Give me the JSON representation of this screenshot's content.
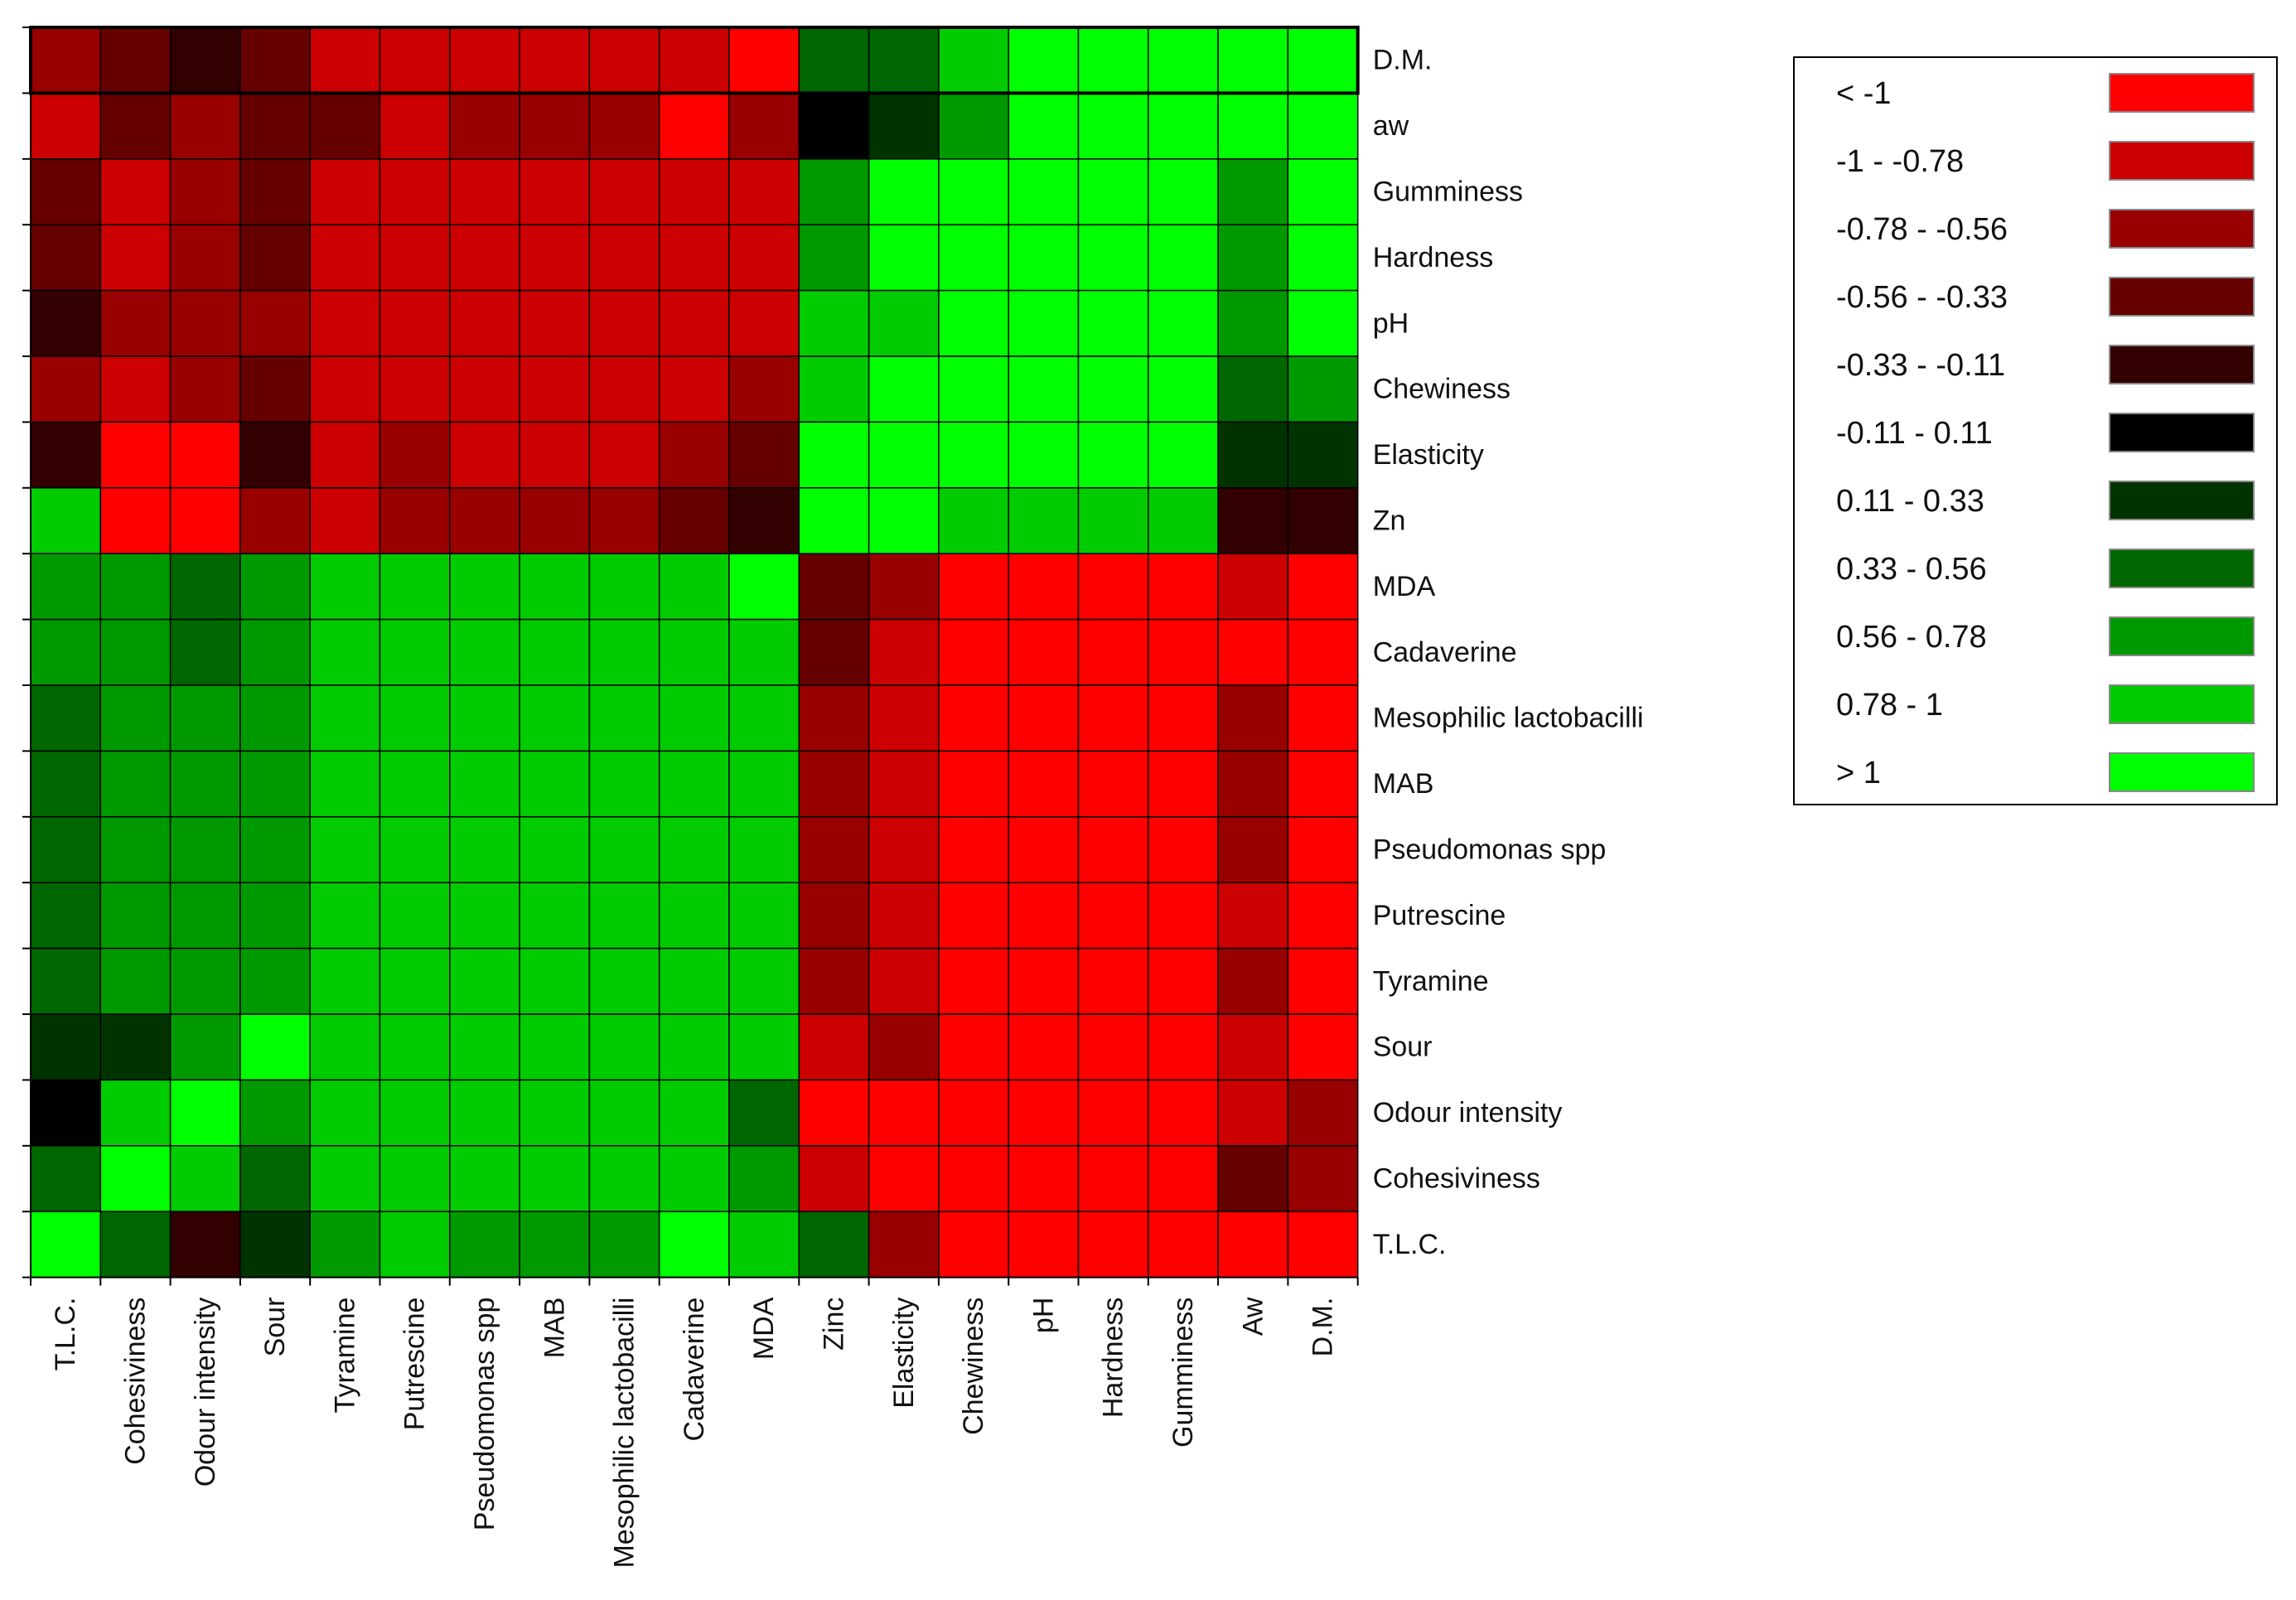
{
  "chart_data": {
    "type": "heatmap",
    "title": "",
    "rows": [
      "D.M.",
      "aw",
      "Gumminess",
      "Hardness",
      "pH",
      "Chewiness",
      "Elasticity",
      "Zn",
      "MDA",
      "Cadaverine",
      "Mesophilic lactobacilli",
      "MAB",
      "Pseudomonas spp",
      "Putrescine",
      "Tyramine",
      "Sour",
      "Odour intensity",
      "Cohesiviness",
      "T.L.C."
    ],
    "columns": [
      "T.L.C.",
      "Cohesiviness",
      "Odour intensity",
      "Sour",
      "Tyramine",
      "Putrescine",
      "Pseudomonas spp",
      "MAB",
      "Mesophilic lactobacilli",
      "Cadaverine",
      "MDA",
      "Zinc",
      "Elasticity",
      "Chewiness",
      "pH",
      "Hardness",
      "Gumminess",
      "Aw",
      "D.M."
    ],
    "bins": [
      {
        "label": "< -1",
        "color": "#ff0000"
      },
      {
        "label": "-1 - -0.78",
        "color": "#cc0000"
      },
      {
        "label": "-0.78 - -0.56",
        "color": "#990000"
      },
      {
        "label": "-0.56 - -0.33",
        "color": "#660000"
      },
      {
        "label": "-0.33 - -0.11",
        "color": "#330000"
      },
      {
        "label": "-0.11 - 0.11",
        "color": "#000000"
      },
      {
        "label": "0.11 - 0.33",
        "color": "#003300"
      },
      {
        "label": "0.33 - 0.56",
        "color": "#006600"
      },
      {
        "label": "0.56 - 0.78",
        "color": "#009900"
      },
      {
        "label": "0.78 - 1",
        "color": "#00cc00"
      },
      {
        "label": "> 1",
        "color": "#00ff00"
      }
    ],
    "cells": [
      [
        2,
        3,
        4,
        3,
        1,
        1,
        1,
        1,
        1,
        1,
        0,
        7,
        7,
        9,
        10,
        10,
        10,
        10,
        10
      ],
      [
        1,
        3,
        2,
        3,
        3,
        1,
        2,
        2,
        2,
        0,
        2,
        5,
        6,
        8,
        10,
        10,
        10,
        10,
        10
      ],
      [
        3,
        1,
        2,
        3,
        1,
        1,
        1,
        1,
        1,
        1,
        1,
        8,
        10,
        10,
        10,
        10,
        10,
        8,
        10
      ],
      [
        3,
        1,
        2,
        3,
        1,
        1,
        1,
        1,
        1,
        1,
        1,
        8,
        10,
        10,
        10,
        10,
        10,
        8,
        10
      ],
      [
        4,
        2,
        2,
        2,
        1,
        1,
        1,
        1,
        1,
        1,
        1,
        9,
        9,
        10,
        10,
        10,
        10,
        8,
        10
      ],
      [
        2,
        1,
        2,
        3,
        1,
        1,
        1,
        1,
        1,
        1,
        2,
        9,
        10,
        10,
        10,
        10,
        10,
        7,
        8
      ],
      [
        4,
        0,
        0,
        4,
        1,
        2,
        1,
        1,
        1,
        2,
        3,
        10,
        10,
        10,
        10,
        10,
        10,
        6,
        6
      ],
      [
        9,
        0,
        0,
        2,
        1,
        2,
        2,
        2,
        2,
        3,
        4,
        10,
        10,
        9,
        9,
        9,
        9,
        4,
        4
      ],
      [
        8,
        8,
        7,
        8,
        9,
        9,
        9,
        9,
        9,
        9,
        10,
        3,
        2,
        0,
        0,
        0,
        0,
        1,
        0
      ],
      [
        8,
        8,
        7,
        8,
        9,
        9,
        9,
        9,
        9,
        9,
        9,
        3,
        1,
        0,
        0,
        0,
        0,
        0,
        0
      ],
      [
        7,
        8,
        8,
        8,
        9,
        9,
        9,
        9,
        9,
        9,
        9,
        2,
        1,
        0,
        0,
        0,
        0,
        2,
        0
      ],
      [
        7,
        8,
        8,
        8,
        9,
        9,
        9,
        9,
        9,
        9,
        9,
        2,
        1,
        0,
        0,
        0,
        0,
        2,
        0
      ],
      [
        7,
        8,
        8,
        8,
        9,
        9,
        9,
        9,
        9,
        9,
        9,
        2,
        1,
        0,
        0,
        0,
        0,
        2,
        0
      ],
      [
        7,
        8,
        8,
        8,
        9,
        9,
        9,
        9,
        9,
        9,
        9,
        2,
        1,
        0,
        0,
        0,
        0,
        1,
        0
      ],
      [
        7,
        8,
        8,
        8,
        9,
        9,
        9,
        9,
        9,
        9,
        9,
        2,
        1,
        0,
        0,
        0,
        0,
        2,
        0
      ],
      [
        6,
        6,
        8,
        10,
        9,
        9,
        9,
        9,
        9,
        9,
        9,
        1,
        2,
        0,
        0,
        0,
        0,
        1,
        0
      ],
      [
        5,
        9,
        10,
        8,
        9,
        9,
        9,
        9,
        9,
        9,
        7,
        0,
        0,
        0,
        0,
        0,
        0,
        1,
        2
      ],
      [
        7,
        10,
        9,
        7,
        9,
        9,
        9,
        9,
        9,
        9,
        8,
        1,
        0,
        0,
        0,
        0,
        0,
        3,
        2
      ],
      [
        10,
        7,
        4,
        6,
        8,
        9,
        8,
        8,
        8,
        10,
        9,
        7,
        2,
        0,
        0,
        0,
        0,
        0,
        0
      ]
    ],
    "legend_position": "top-right"
  }
}
